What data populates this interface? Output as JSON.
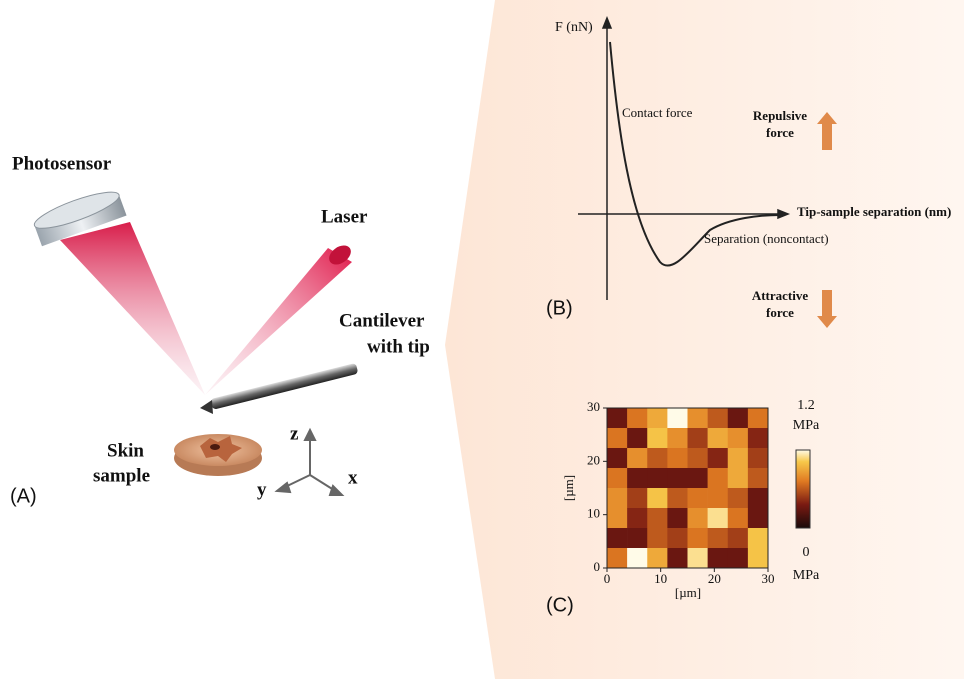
{
  "panel_a": {
    "label": "(A)",
    "photosensor": "Photosensor",
    "laser": "Laser",
    "cantilever": [
      "Cantilever",
      "with tip"
    ],
    "skin_sample": [
      "Skin",
      "sample"
    ],
    "axes": {
      "z": "z",
      "y": "y",
      "x": "x"
    }
  },
  "panel_b": {
    "label": "(B)",
    "y_axis": "F (nN)",
    "x_axis": "Tip-sample separation (nm)",
    "contact": "Contact force",
    "noncontact": "Separation (noncontact)",
    "repulsive": [
      "Repulsive",
      "force"
    ],
    "attractive": [
      "Attractive",
      "force"
    ]
  },
  "panel_c": {
    "label": "(C)",
    "type": "heatmap",
    "xlabel": "[µm]",
    "ylabel": "[µm]",
    "xlim": [
      0,
      30
    ],
    "ylim": [
      0,
      30
    ],
    "xticks": [
      0,
      10,
      20,
      30
    ],
    "yticks": [
      0,
      10,
      20,
      30
    ],
    "vlim": [
      0,
      1.2
    ],
    "unit": "MPa",
    "values": [
      [
        0.3,
        0.7,
        0.9,
        1.2,
        0.8,
        0.6,
        0.3,
        0.7
      ],
      [
        0.7,
        0.3,
        1.0,
        0.8,
        0.5,
        0.9,
        0.8,
        0.4
      ],
      [
        0.3,
        0.8,
        0.6,
        0.7,
        0.6,
        0.4,
        0.9,
        0.5
      ],
      [
        0.7,
        0.3,
        0.3,
        0.3,
        0.3,
        0.7,
        0.9,
        0.6
      ],
      [
        0.8,
        0.5,
        1.0,
        0.6,
        0.7,
        0.7,
        0.6,
        0.3
      ],
      [
        0.8,
        0.4,
        0.6,
        0.3,
        0.8,
        1.1,
        0.7,
        0.3
      ],
      [
        0.3,
        0.3,
        0.6,
        0.5,
        0.7,
        0.6,
        0.5,
        1.0
      ],
      [
        0.7,
        1.2,
        0.9,
        0.3,
        1.1,
        0.3,
        0.3,
        1.0
      ]
    ]
  }
}
